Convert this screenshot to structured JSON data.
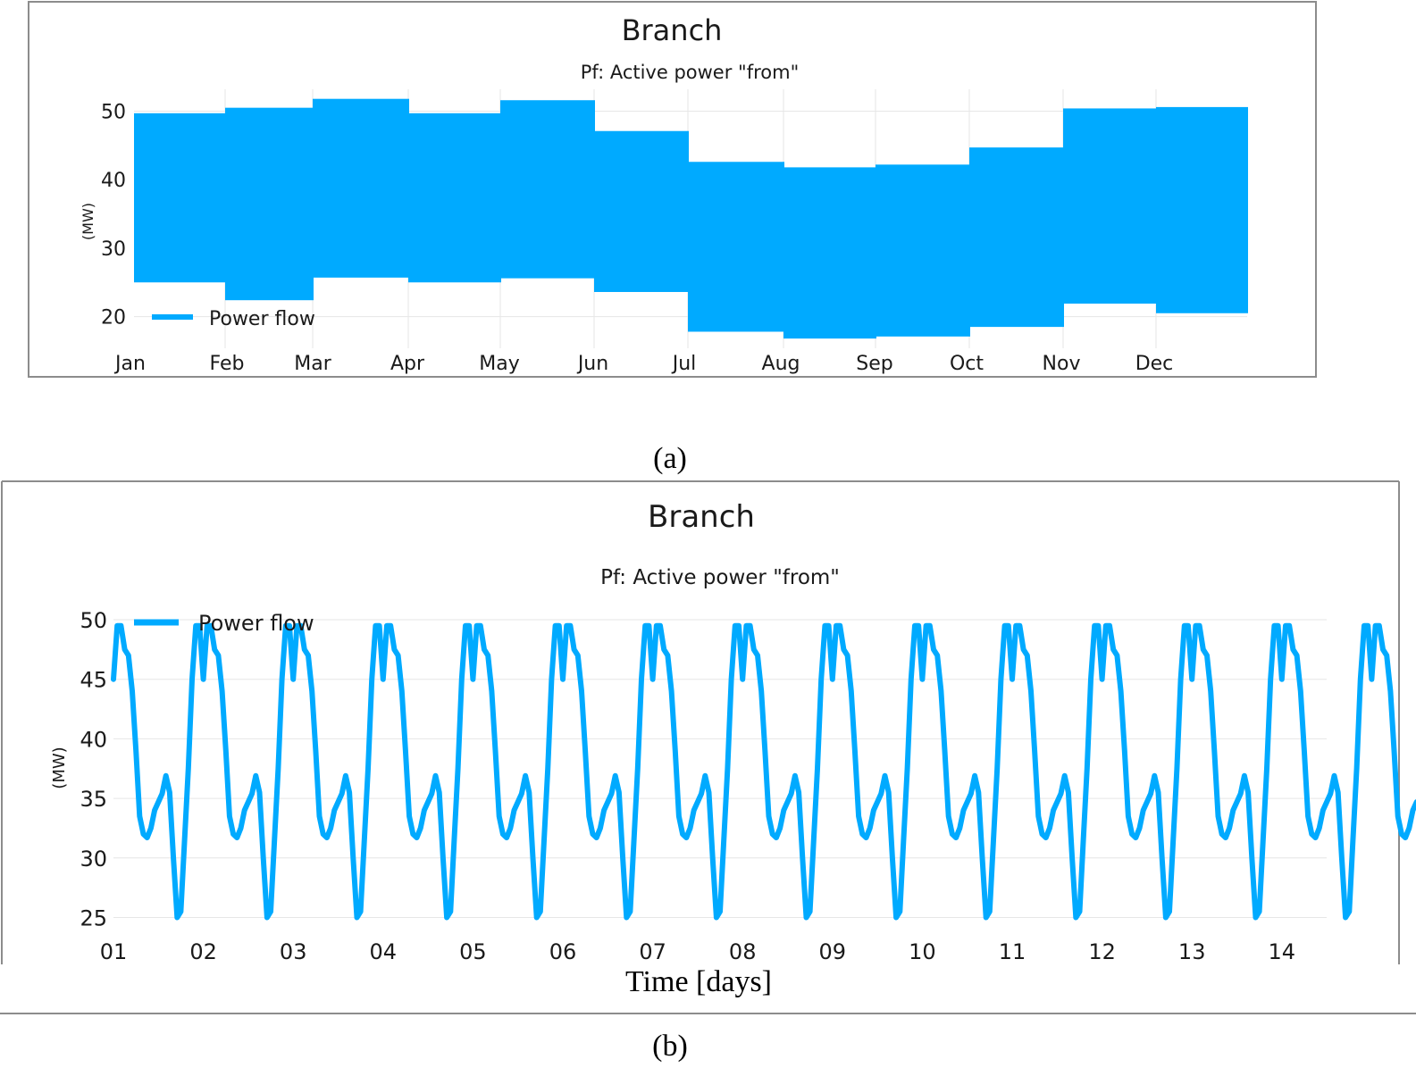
{
  "colors": {
    "series": "#00aaff",
    "frame": "#8c8c8c",
    "grid": "#e6e6e6"
  },
  "panel_a": {
    "caption": "(a)",
    "chart_data": {
      "type": "area",
      "title": "Branch",
      "subtitle": "Pf: Active power \"from\"",
      "ylabel": "(MW)",
      "xlabel": "",
      "ylim": [
        15,
        53
      ],
      "yticks": [
        20,
        30,
        40,
        50
      ],
      "x_tick_labels": [
        "Jan",
        "Feb",
        "Mar",
        "Apr",
        "May",
        "Jun",
        "Jul",
        "Aug",
        "Sep",
        "Oct",
        "Nov",
        "Dec"
      ],
      "grid": true,
      "legend": {
        "position": "bottom-left",
        "entries": [
          "Power flow"
        ]
      },
      "series": [
        {
          "name": "Power flow",
          "months": [
            "Jan",
            "Feb",
            "Mar",
            "Apr",
            "May",
            "Jun",
            "Jul",
            "Aug",
            "Sep",
            "Oct",
            "Nov",
            "Dec"
          ],
          "max": [
            49.7,
            50.5,
            51.8,
            49.7,
            51.6,
            47.1,
            42.6,
            41.8,
            42.2,
            44.7,
            50.4,
            50.6
          ],
          "min": [
            25.0,
            22.4,
            25.7,
            25.0,
            25.6,
            23.6,
            17.8,
            16.8,
            17.1,
            18.5,
            21.9,
            20.5
          ]
        }
      ]
    }
  },
  "panel_b": {
    "caption": "(b)",
    "chart_data": {
      "type": "line",
      "title": "Branch",
      "subtitle": "Pf: Active power \"from\"",
      "ylabel": "(MW)",
      "xlabel": "Time [days]",
      "ylim": [
        24.5,
        50.5
      ],
      "yticks": [
        25,
        30,
        35,
        40,
        45,
        50
      ],
      "x_tick_labels": [
        "01",
        "02",
        "03",
        "04",
        "05",
        "06",
        "07",
        "08",
        "09",
        "10",
        "11",
        "12",
        "13",
        "14"
      ],
      "xlim_days": [
        1,
        14.5
      ],
      "grid": true,
      "legend": {
        "position": "top-left",
        "entries": [
          "Power flow"
        ]
      },
      "series": [
        {
          "name": "Power flow",
          "daily_profile_hourly": [
            45.0,
            49.5,
            49.5,
            47.5,
            47.0,
            44.0,
            39.0,
            33.5,
            32.0,
            31.7,
            32.5,
            34.0,
            34.7,
            35.4,
            36.9,
            35.5,
            30.0,
            25.0,
            25.5,
            31.5,
            37.5,
            45.0,
            49.5,
            49.5
          ],
          "days": 14.5
        }
      ]
    }
  }
}
